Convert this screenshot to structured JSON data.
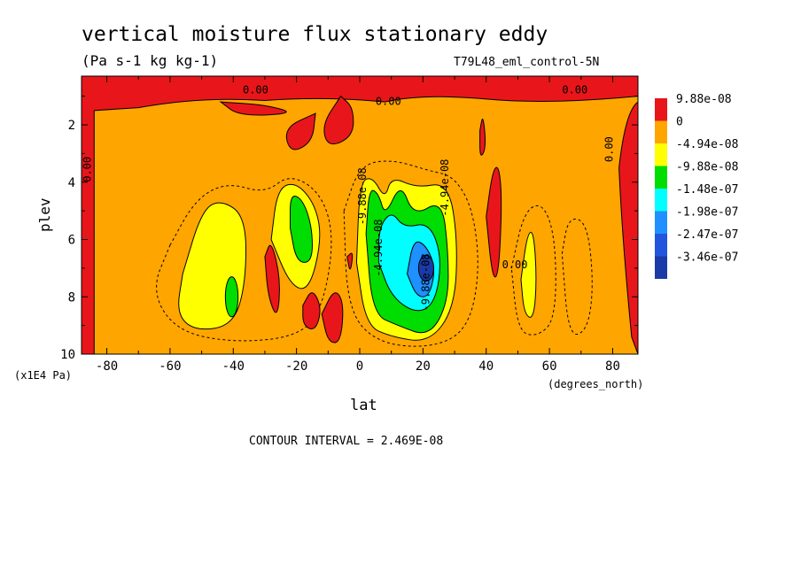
{
  "chart_data": {
    "type": "heatmap",
    "title": "vertical moisture flux stationary eddy",
    "units": "(Pa s-1 kg kg-1)",
    "run_label": "T79L48_eml_control-5N",
    "xlabel": "lat",
    "xunits": "(degrees_north)",
    "ylabel": "plev",
    "yunits": "(x1E4 Pa)",
    "xlim": [
      -88,
      88
    ],
    "ylim": [
      0.3,
      10
    ],
    "y_inverted": true,
    "x_ticks": [
      "-80",
      "-60",
      "-40",
      "-20",
      "0",
      "20",
      "40",
      "60",
      "80"
    ],
    "x_tick_values": [
      -80,
      -60,
      -40,
      -20,
      0,
      20,
      40,
      60,
      80
    ],
    "y_ticks": [
      "2",
      "4",
      "6",
      "8",
      "10"
    ],
    "y_tick_values": [
      2,
      4,
      6,
      8,
      10
    ],
    "contour_interval": "CONTOUR INTERVAL = 2.469E-08",
    "legend": {
      "placement": "right",
      "levels": [
        {
          "label": "9.88e-08",
          "color": "#e8161a"
        },
        {
          "label": "0",
          "color": "#ffa500"
        },
        {
          "label": "-4.94e-08",
          "color": "#ffff00"
        },
        {
          "label": "-9.88e-08",
          "color": "#00dd00"
        },
        {
          "label": "-1.48e-07",
          "color": "#00ffff"
        },
        {
          "label": "-1.98e-07",
          "color": "#1e90ff"
        },
        {
          "label": "-2.47e-07",
          "color": "#2255dd"
        },
        {
          "label": "-3.46e-07",
          "color": "#1a3aa8"
        }
      ]
    },
    "contour_labels": [
      {
        "text": "0.00",
        "x": -37,
        "y": 0.9
      },
      {
        "text": "0.00",
        "x": 5,
        "y": 1.3
      },
      {
        "text": "0.00",
        "x": 64,
        "y": 0.9
      },
      {
        "text": "0.00",
        "x": -85,
        "y": 4.0
      },
      {
        "text": "0.00",
        "x": 80,
        "y": 3.3
      },
      {
        "text": "0.00",
        "x": 45,
        "y": 7.0
      },
      {
        "text": "-9.88e-08",
        "x": 2,
        "y": 5.5
      },
      {
        "text": "-4.94e-08",
        "x": 28,
        "y": 5.2
      },
      {
        "text": "-4.94e-08",
        "x": 7,
        "y": 7.3
      },
      {
        "text": "-9.88e-08",
        "x": 22,
        "y": 8.5
      }
    ],
    "regions": [
      {
        "name": "background",
        "value": "0 to -4.94e-08",
        "color": "#ffa500"
      },
      {
        "name": "stratosphere-positive",
        "value": ">0",
        "color": "#e8161a",
        "lat": [
          -88,
          88
        ],
        "plev": [
          0.3,
          1.2
        ]
      },
      {
        "name": "south-subtropic-min",
        "value": "-9.88e-08",
        "color": "#00dd00",
        "lat": [
          -40,
          -38
        ],
        "plev": [
          7.5,
          8.5
        ]
      },
      {
        "name": "sh-subtropic-min",
        "value": "-1.48e-07",
        "color": "#00dd00",
        "lat": [
          -25,
          -15
        ],
        "plev": [
          5,
          7
        ]
      },
      {
        "name": "tropical-min",
        "value": "-3.46e-07",
        "color": "#1a3aa8",
        "lat": [
          18,
          24
        ],
        "plev": [
          6.5,
          7.5
        ]
      }
    ]
  }
}
